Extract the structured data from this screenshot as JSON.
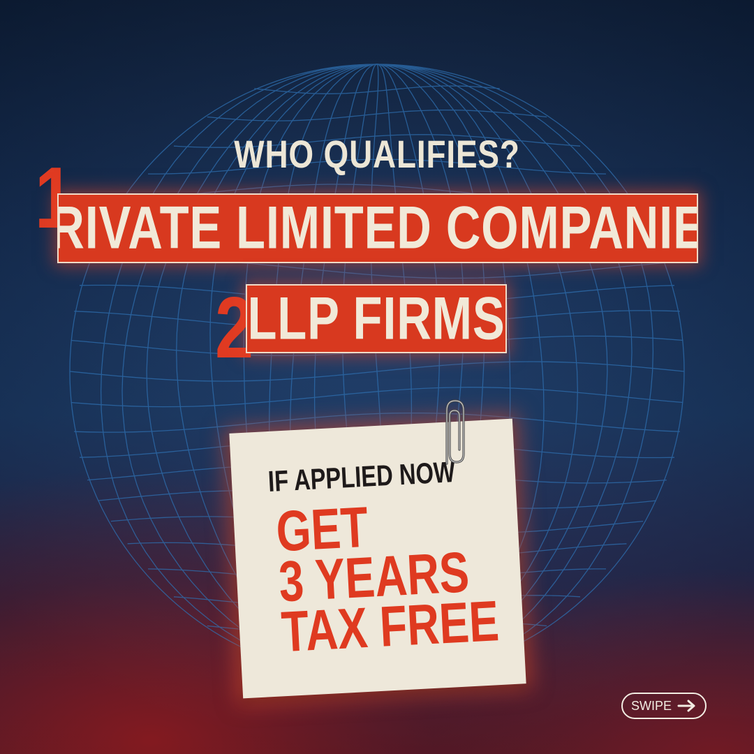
{
  "title": "WHO QUALIFIES?",
  "items": [
    {
      "number": "1",
      "label": "PRIVATE LIMITED COMPANIES"
    },
    {
      "number": "2",
      "label": "LLP FIRMS"
    }
  ],
  "note": {
    "line1": "IF APPLIED NOW",
    "line2": "GET",
    "line3": "3 YEARS",
    "line4": "TAX FREE"
  },
  "swipe": {
    "label": "SWIPE",
    "icon": "arrow-right-icon"
  },
  "colors": {
    "accent": "#d8391f",
    "cream": "#ece6d6",
    "navy": "#15305a"
  }
}
